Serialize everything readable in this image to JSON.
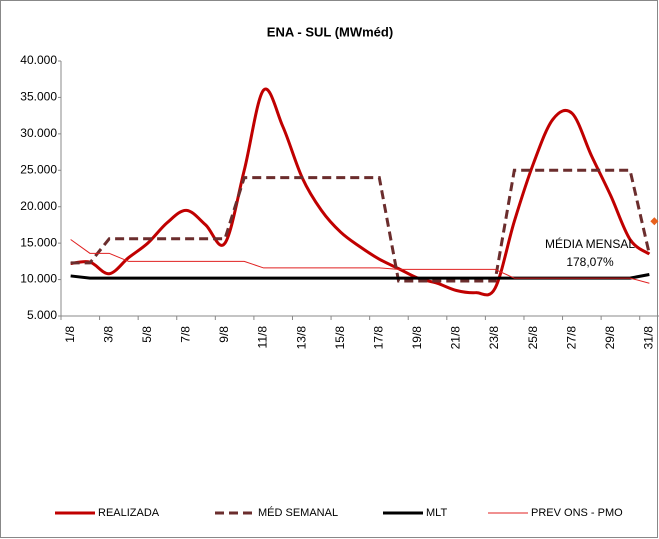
{
  "chart_data": {
    "type": "line",
    "title": "ENA - SUL (MWméd)",
    "categories": [
      "1/8",
      null,
      "3/8",
      null,
      "5/8",
      null,
      "7/8",
      null,
      "9/8",
      null,
      "11/8",
      null,
      "13/8",
      null,
      "15/8",
      null,
      "17/8",
      null,
      "19/8",
      null,
      "21/8",
      null,
      "23/8",
      null,
      "25/8",
      null,
      "27/8",
      null,
      "29/8",
      null,
      "31/8"
    ],
    "ylim": [
      5000,
      40000
    ],
    "yticks": [
      {
        "value": 5000,
        "label": "5.000"
      },
      {
        "value": 10000,
        "label": "10.000"
      },
      {
        "value": 15000,
        "label": "15.000"
      },
      {
        "value": 20000,
        "label": "20.000"
      },
      {
        "value": 25000,
        "label": "25.000"
      },
      {
        "value": 30000,
        "label": "30.000"
      },
      {
        "value": 35000,
        "label": "35.000"
      },
      {
        "value": 40000,
        "label": "40.000"
      }
    ],
    "series": [
      {
        "name": "REALIZADA",
        "color": "#c00000",
        "width": 3,
        "dash": false,
        "smooth": true,
        "values": [
          12200,
          12400,
          10800,
          13000,
          15000,
          17800,
          19500,
          17500,
          15000,
          25000,
          36000,
          31000,
          24000,
          19500,
          16500,
          14500,
          12800,
          11500,
          10200,
          9500,
          8500,
          8200,
          8800,
          18000,
          26000,
          32000,
          32800,
          27000,
          21500,
          15500,
          13500
        ]
      },
      {
        "name": "MÉD SEMANAL",
        "color": "#6b2d2d",
        "width": 3,
        "dash": true,
        "smooth": false,
        "values": [
          12300,
          12300,
          15600,
          15600,
          15600,
          15600,
          15600,
          15600,
          15600,
          24000,
          24000,
          24000,
          24000,
          24000,
          24000,
          24000,
          24000,
          9800,
          9800,
          9800,
          9800,
          9800,
          9800,
          25000,
          25000,
          25000,
          25000,
          25000,
          25000,
          25000,
          13500
        ]
      },
      {
        "name": "MLT",
        "color": "#000000",
        "width": 3,
        "dash": false,
        "smooth": false,
        "values": [
          10500,
          10200,
          10200,
          10200,
          10200,
          10200,
          10200,
          10200,
          10200,
          10200,
          10200,
          10200,
          10200,
          10200,
          10200,
          10200,
          10200,
          10200,
          10200,
          10200,
          10200,
          10200,
          10200,
          10200,
          10200,
          10200,
          10200,
          10200,
          10200,
          10200,
          10700
        ]
      },
      {
        "name": "PREV ONS - PMO",
        "color": "#e02020",
        "width": 1,
        "dash": false,
        "smooth": false,
        "values": [
          15500,
          13600,
          13600,
          12500,
          12500,
          12500,
          12500,
          12500,
          12500,
          12500,
          11600,
          11600,
          11600,
          11600,
          11600,
          11600,
          11600,
          11400,
          11400,
          11400,
          11400,
          11400,
          11400,
          10200,
          10200,
          10200,
          10200,
          10200,
          10200,
          10200,
          9500
        ]
      }
    ],
    "annotation": {
      "lines": [
        "MÉDIA MENSAL",
        "178,07%"
      ],
      "value": 18000,
      "color": "#e8601c"
    },
    "grid": false,
    "legend": "bottom"
  }
}
